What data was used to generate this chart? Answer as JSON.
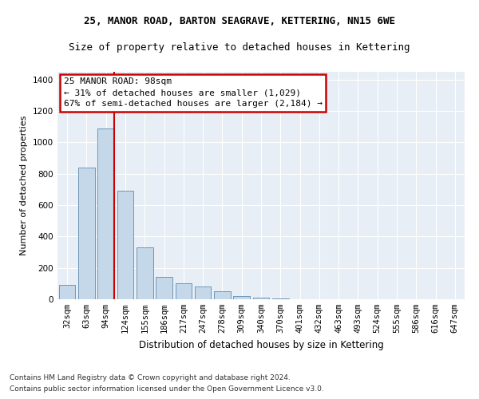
{
  "title1": "25, MANOR ROAD, BARTON SEAGRAVE, KETTERING, NN15 6WE",
  "title2": "Size of property relative to detached houses in Kettering",
  "xlabel": "Distribution of detached houses by size in Kettering",
  "ylabel": "Number of detached properties",
  "footer1": "Contains HM Land Registry data © Crown copyright and database right 2024.",
  "footer2": "Contains public sector information licensed under the Open Government Licence v3.0.",
  "annotation_title": "25 MANOR ROAD: 98sqm",
  "annotation_line1": "← 31% of detached houses are smaller (1,029)",
  "annotation_line2": "67% of semi-detached houses are larger (2,184) →",
  "bar_color": "#c5d8ea",
  "bar_edge_color": "#5a8bb0",
  "vline_color": "#cc0000",
  "background_color": "#e8eef5",
  "grid_color": "#ffffff",
  "categories": [
    "32sqm",
    "63sqm",
    "94sqm",
    "124sqm",
    "155sqm",
    "186sqm",
    "217sqm",
    "247sqm",
    "278sqm",
    "309sqm",
    "340sqm",
    "370sqm",
    "401sqm",
    "432sqm",
    "463sqm",
    "493sqm",
    "524sqm",
    "555sqm",
    "586sqm",
    "616sqm",
    "647sqm"
  ],
  "values": [
    90,
    840,
    1090,
    690,
    330,
    145,
    100,
    80,
    50,
    20,
    8,
    3,
    0,
    0,
    0,
    0,
    0,
    0,
    0,
    0,
    0
  ],
  "ylim": [
    0,
    1450
  ],
  "yticks": [
    0,
    200,
    400,
    600,
    800,
    1000,
    1200,
    1400
  ],
  "vline_x_index": 2,
  "title1_fontsize": 9,
  "title2_fontsize": 9,
  "ylabel_fontsize": 8,
  "xlabel_fontsize": 8.5,
  "tick_fontsize": 7.5,
  "footer_fontsize": 6.5,
  "ann_fontsize": 8.0
}
